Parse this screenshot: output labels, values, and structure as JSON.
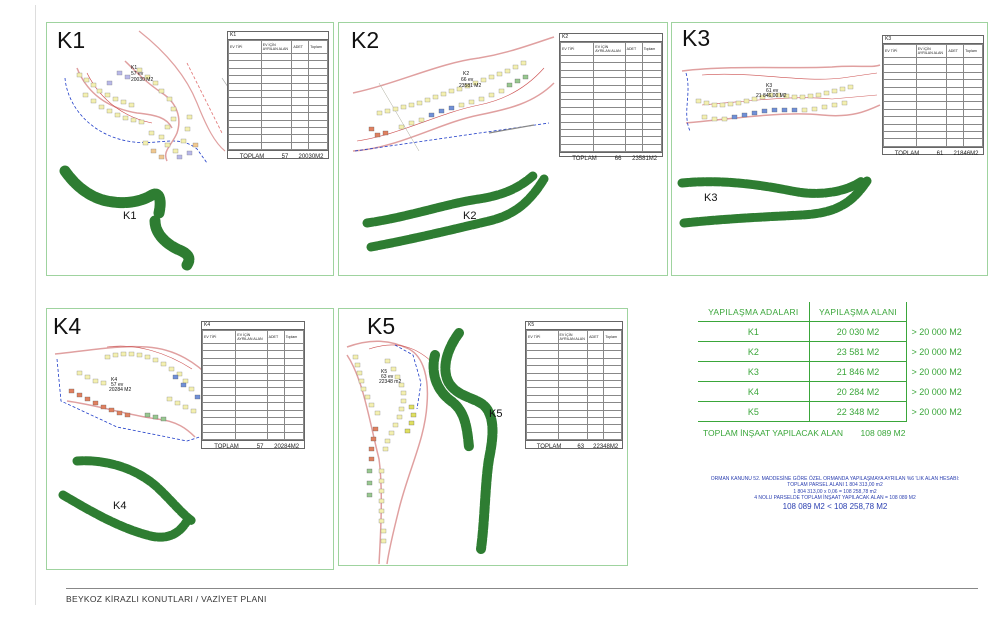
{
  "footer": {
    "title": "BEYKOZ KİRAZLI KONUTLARI / VAZİYET PLANI"
  },
  "panels": [
    {
      "id": "K1",
      "label": "K1",
      "plan_label_1": "K1",
      "plan_label_2": "57 ev",
      "plan_label_3": "20030 M2",
      "green_label": "K1",
      "table_title": "K1",
      "total_label": "TOPLAM",
      "total_count": "57",
      "total_area": "20030M2"
    },
    {
      "id": "K2",
      "label": "K2",
      "plan_label_1": "K2",
      "plan_label_2": "66 ev",
      "plan_label_3": "23581 M2",
      "green_label": "K2",
      "table_title": "K2",
      "total_label": "TOPLAM",
      "total_count": "66",
      "total_area": "23581M2"
    },
    {
      "id": "K3",
      "label": "K3",
      "plan_label_1": "K3",
      "plan_label_2": "61 ev",
      "plan_label_3": "21 846,00 M2",
      "green_label": "K3",
      "table_title": "K3",
      "total_label": "TOPLAM",
      "total_count": "61",
      "total_area": "21846M2"
    },
    {
      "id": "K4",
      "label": "K4",
      "plan_label_1": "K4",
      "plan_label_2": "57 ev",
      "plan_label_3": "20284 M2",
      "green_label": "K4",
      "table_title": "K4",
      "total_label": "TOPLAM",
      "total_count": "57",
      "total_area": "20284M2"
    },
    {
      "id": "K5",
      "label": "K5",
      "plan_label_1": "K5",
      "plan_label_2": "63 ev",
      "plan_label_3": "22348 m2",
      "green_label": "K5",
      "table_title": "K5",
      "total_label": "TOPLAM",
      "total_count": "63",
      "total_area": "22348M2"
    }
  ],
  "mini_table_headers": {
    "type": "EV TİPİ",
    "area": "EV İÇİN AYRILAN ALAN",
    "count": "ADET",
    "total": "Toplam"
  },
  "summary": {
    "head_left": "YAPILAŞMA ADALARI",
    "head_right": "YAPILAŞMA ALANI",
    "rows": [
      {
        "name": "K1",
        "area": "20 030 M2",
        "cmp": "> 20 000 M2"
      },
      {
        "name": "K2",
        "area": "23 581 M2",
        "cmp": "> 20 000 M2"
      },
      {
        "name": "K3",
        "area": "21 846 M2",
        "cmp": "> 20 000 M2"
      },
      {
        "name": "K4",
        "area": "20 284 M2",
        "cmp": "> 20 000 M2"
      },
      {
        "name": "K5",
        "area": "22 348 M2",
        "cmp": "> 20 000 M2"
      }
    ],
    "total_label": "TOPLAM İNŞAAT YAPILACAK ALAN",
    "total_value": "108 089 M2"
  },
  "notes": {
    "line1": "ORMAN KANUNU 52. MADDESİNE GÖRE ÖZEL ORMANDA YAPILAŞMAYA AYRILAN %6 'LIK ALAN HESABI:",
    "line2": "TOPLAM PARSEL ALANI          1 804 313,00 m2",
    "line3": "1 804 313,00 x 0,06  =  108 258,78 m2",
    "line4": "4 NOLU PARSELDE TOPLAM İNŞAAT YAPILACAK ALAN = 108 089 M2",
    "line5": "108 089 M2 < 108 258,78 M2"
  },
  "colors": {
    "green_mass": "#2e7d32",
    "accent_green": "#3aa63a",
    "note_blue": "#2b3fb0",
    "road": "#e0a0a0",
    "boundary": "#1e3cc8"
  }
}
